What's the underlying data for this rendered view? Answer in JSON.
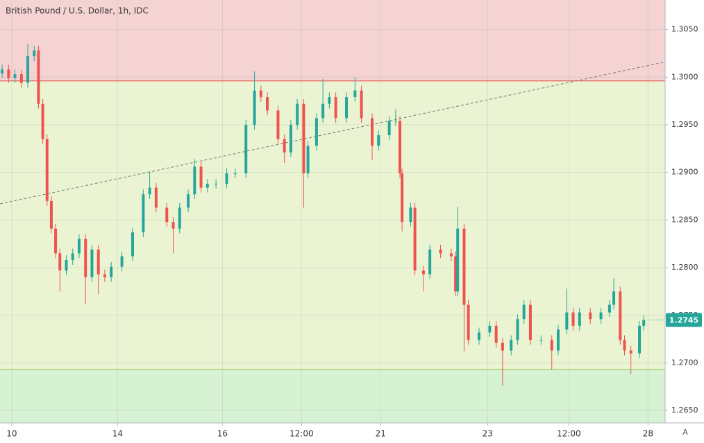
{
  "chart_data": {
    "type": "candlestick",
    "title": "British Pound / U.S. Dollar, 1h, IDC",
    "up_color": "#26a69a",
    "down_color": "#ef5350",
    "grid": true,
    "x": [
      1,
      4,
      7,
      10,
      13,
      16,
      18,
      20,
      22,
      24,
      26,
      28,
      31,
      34,
      37,
      40,
      43,
      46,
      49,
      52,
      57,
      62,
      67,
      70,
      73,
      78,
      81,
      84,
      88,
      91,
      94,
      97,
      101,
      106,
      110,
      115,
      119,
      122,
      125,
      130,
      133,
      136,
      139,
      142,
      144,
      148,
      151,
      154,
      157,
      162,
      166,
      169,
      174,
      177,
      182,
      185,
      187,
      188,
      192,
      194,
      198,
      201,
      206,
      211,
      213,
      214,
      217,
      219,
      224,
      229,
      232,
      235,
      239,
      242,
      245,
      248,
      253,
      258,
      261,
      265,
      268,
      271,
      276,
      281,
      285,
      287,
      290,
      292,
      295,
      299,
      301
    ],
    "open": [
      1.3004,
      1.3008,
      1.2999,
      1.3003,
      1.2994,
      1.3022,
      1.3028,
      1.2972,
      1.2935,
      1.287,
      1.2841,
      1.2815,
      1.2797,
      1.2808,
      1.2815,
      1.283,
      1.279,
      1.2819,
      1.2793,
      1.279,
      1.2801,
      1.2812,
      1.2837,
      1.2877,
      1.2884,
      1.2863,
      1.2848,
      1.2841,
      1.2863,
      1.2877,
      1.2906,
      1.2884,
      1.2888,
      1.2888,
      1.2899,
      1.2899,
      1.295,
      1.2986,
      1.2979,
      1.2965,
      1.2935,
      1.2921,
      1.295,
      1.2972,
      1.2899,
      1.2928,
      1.2957,
      1.2972,
      1.2979,
      1.2957,
      1.2979,
      1.2986,
      1.2957,
      1.2928,
      1.2939,
      1.2954,
      1.2954,
      1.2899,
      1.2848,
      1.2863,
      1.2797,
      1.2793,
      1.2819,
      1.2815,
      1.2812,
      1.2775,
      1.2841,
      1.2761,
      1.2724,
      1.2732,
      1.2739,
      1.2721,
      1.2713,
      1.2724,
      1.2746,
      1.2761,
      1.2724,
      1.2724,
      1.2713,
      1.2735,
      1.2753,
      1.2739,
      1.2753,
      1.2746,
      1.2753,
      1.2761,
      1.2775,
      1.2724,
      1.2713,
      1.271,
      1.2739
    ],
    "high": [
      1.3013,
      1.3013,
      1.3008,
      1.3008,
      1.3035,
      1.3033,
      1.3033,
      1.2977,
      1.294,
      1.2875,
      1.2846,
      1.282,
      1.2813,
      1.282,
      1.2835,
      1.2835,
      1.2824,
      1.2824,
      1.2798,
      1.2806,
      1.2817,
      1.2842,
      1.2882,
      1.2901,
      1.2889,
      1.2868,
      1.2853,
      1.2868,
      1.2882,
      1.2914,
      1.2911,
      1.2893,
      1.2893,
      1.2904,
      1.2904,
      1.2955,
      1.3006,
      1.2991,
      1.2984,
      1.297,
      1.294,
      1.2955,
      1.2977,
      1.2977,
      1.2933,
      1.2962,
      1.2998,
      1.2984,
      1.2984,
      1.2984,
      1.3,
      1.2991,
      1.2962,
      1.2944,
      1.2959,
      1.2966,
      1.2959,
      1.2904,
      1.2868,
      1.2868,
      1.2802,
      1.2824,
      1.2824,
      1.282,
      1.2817,
      1.2864,
      1.2846,
      1.2766,
      1.2737,
      1.2744,
      1.2744,
      1.2726,
      1.2729,
      1.2751,
      1.2766,
      1.2766,
      1.2729,
      1.2729,
      1.274,
      1.2778,
      1.2758,
      1.2758,
      1.2758,
      1.2758,
      1.2766,
      1.2789,
      1.278,
      1.2729,
      1.2718,
      1.2744,
      1.275
    ],
    "low": [
      1.2999,
      1.2994,
      1.2994,
      1.2989,
      1.2989,
      1.3017,
      1.2967,
      1.293,
      1.2865,
      1.2836,
      1.281,
      1.2775,
      1.2792,
      1.2803,
      1.281,
      1.2762,
      1.2785,
      1.2772,
      1.2785,
      1.2785,
      1.2796,
      1.2807,
      1.2832,
      1.2872,
      1.2858,
      1.2843,
      1.2815,
      1.2836,
      1.2858,
      1.2872,
      1.2879,
      1.2879,
      1.2883,
      1.2883,
      1.2894,
      1.2894,
      1.2945,
      1.2974,
      1.296,
      1.293,
      1.291,
      1.2916,
      1.2945,
      1.2863,
      1.2894,
      1.2923,
      1.2952,
      1.2967,
      1.2952,
      1.2952,
      1.2974,
      1.2952,
      1.2913,
      1.2923,
      1.2934,
      1.2949,
      1.2894,
      1.2838,
      1.2843,
      1.2792,
      1.2775,
      1.2788,
      1.281,
      1.2807,
      1.277,
      1.277,
      1.2712,
      1.2719,
      1.2719,
      1.2727,
      1.2716,
      1.2676,
      1.2708,
      1.2719,
      1.2741,
      1.2719,
      1.2719,
      1.2693,
      1.2708,
      1.273,
      1.2734,
      1.2734,
      1.2741,
      1.2741,
      1.2748,
      1.2756,
      1.2719,
      1.2708,
      1.2688,
      1.2705,
      1.2734
    ],
    "close": [
      1.3008,
      1.2999,
      1.3003,
      1.2994,
      1.3022,
      1.3028,
      1.2972,
      1.2935,
      1.287,
      1.2841,
      1.2815,
      1.2797,
      1.2808,
      1.2815,
      1.283,
      1.279,
      1.2819,
      1.2793,
      1.279,
      1.2801,
      1.2812,
      1.2837,
      1.2877,
      1.2884,
      1.2863,
      1.2848,
      1.2841,
      1.2863,
      1.2877,
      1.2906,
      1.2884,
      1.2888,
      1.2888,
      1.2899,
      1.2899,
      1.295,
      1.2986,
      1.2979,
      1.2965,
      1.2935,
      1.2921,
      1.295,
      1.2972,
      1.2899,
      1.2928,
      1.2957,
      1.2972,
      1.2979,
      1.2957,
      1.2979,
      1.2986,
      1.2957,
      1.2928,
      1.2939,
      1.2954,
      1.2954,
      1.2899,
      1.2848,
      1.2863,
      1.2797,
      1.2793,
      1.2819,
      1.2815,
      1.2812,
      1.2775,
      1.2841,
      1.2761,
      1.2724,
      1.2732,
      1.2739,
      1.2721,
      1.2713,
      1.2724,
      1.2746,
      1.2761,
      1.2724,
      1.2724,
      1.2713,
      1.2735,
      1.2753,
      1.2739,
      1.2753,
      1.2746,
      1.2753,
      1.2761,
      1.2775,
      1.2724,
      1.2713,
      1.271,
      1.2739,
      1.2745
    ],
    "xlim": [
      0,
      311
    ],
    "ylim": [
      1.2637,
      1.3081
    ],
    "xticks": [
      {
        "value": 5.5,
        "label": "10"
      },
      {
        "value": 55,
        "label": "14"
      },
      {
        "value": 104,
        "label": "16"
      },
      {
        "value": 141,
        "label": "12:00"
      },
      {
        "value": 178,
        "label": "21"
      },
      {
        "value": 228,
        "label": "23"
      },
      {
        "value": 266,
        "label": "12:00"
      },
      {
        "value": 303,
        "label": "28"
      }
    ],
    "yticks": [
      {
        "value": 1.265,
        "label": "1.2650"
      },
      {
        "value": 1.27,
        "label": "1.2700"
      },
      {
        "value": 1.275,
        "label": "1.2750"
      },
      {
        "value": 1.28,
        "label": "1.2800"
      },
      {
        "value": 1.285,
        "label": "1.2850"
      },
      {
        "value": 1.29,
        "label": "1.2900"
      },
      {
        "value": 1.295,
        "label": "1.2950"
      },
      {
        "value": 1.3,
        "label": "1.3000"
      },
      {
        "value": 1.305,
        "label": "1.3050"
      }
    ],
    "resistance": {
      "value": 1.2996,
      "color": "#e53935",
      "zone_color": "#f5d3d3"
    },
    "support": {
      "value": 1.2693,
      "color": "#8bc34a",
      "zone_color": "#d6f2d2"
    },
    "middle_zone_color": "#eaf4d2",
    "trendline": {
      "x": [
        0,
        311
      ],
      "y": [
        1.2867,
        1.3016
      ],
      "color": "#777777"
    },
    "last_price": 1.2745,
    "auto_button": "A"
  }
}
